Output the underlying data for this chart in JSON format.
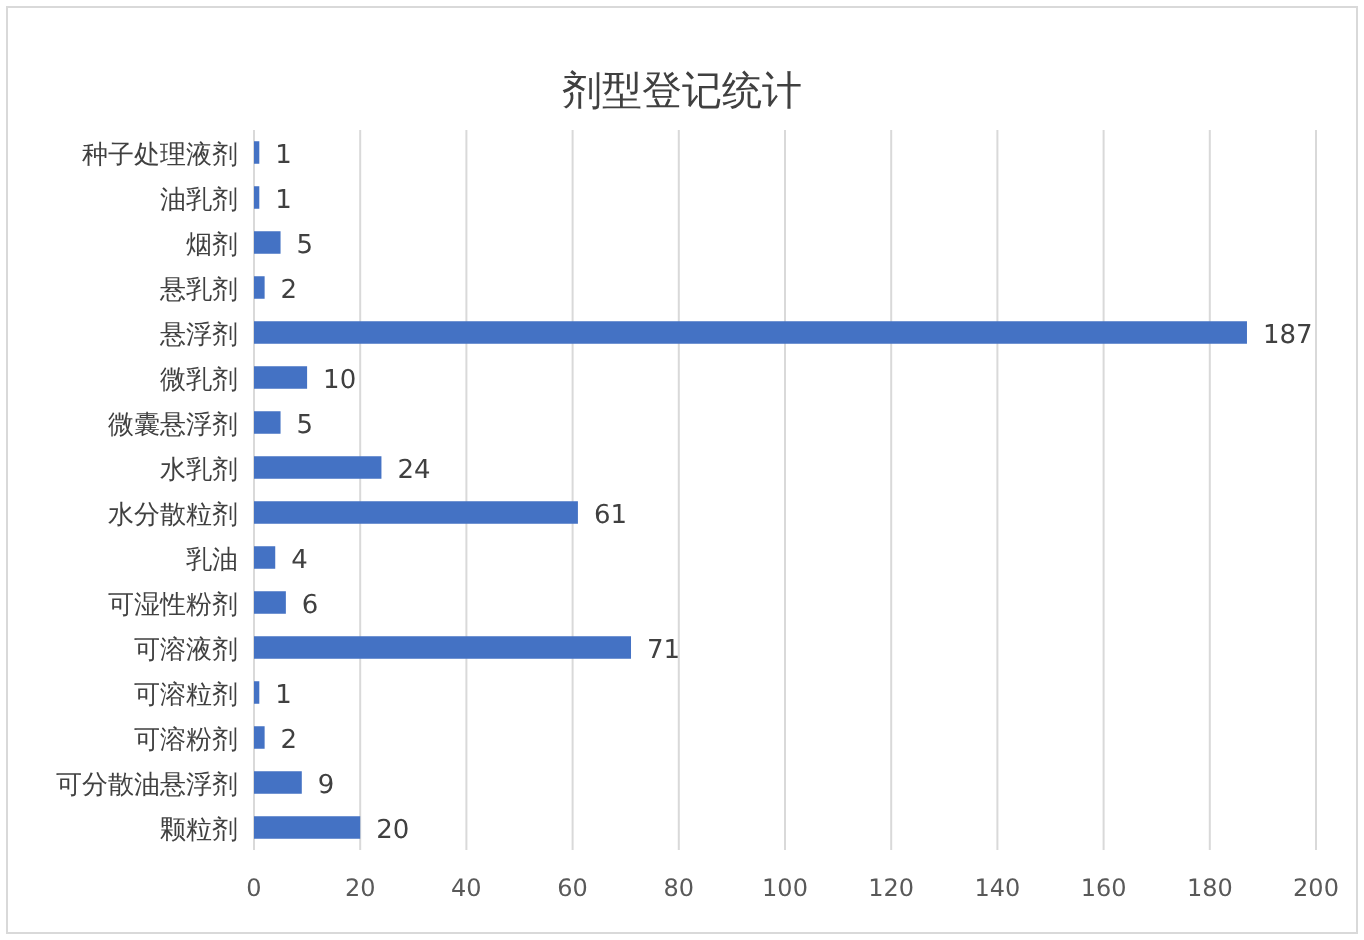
{
  "chart_data": {
    "type": "bar",
    "orientation": "horizontal",
    "title": "剂型登记统计",
    "categories": [
      "种子处理液剂",
      "油乳剂",
      "烟剂",
      "悬乳剂",
      "悬浮剂",
      "微乳剂",
      "微囊悬浮剂",
      "水乳剂",
      "水分散粒剂",
      "乳油",
      "可湿性粉剂",
      "可溶液剂",
      "可溶粒剂",
      "可溶粉剂",
      "可分散油悬浮剂",
      "颗粒剂"
    ],
    "values": [
      1,
      1,
      5,
      2,
      187,
      10,
      5,
      24,
      61,
      4,
      6,
      71,
      1,
      2,
      9,
      20
    ],
    "color": "#4472c4",
    "xlim": [
      0,
      200
    ],
    "xticks": [
      0,
      20,
      40,
      60,
      80,
      100,
      120,
      140,
      160,
      180,
      200
    ],
    "grid": "x",
    "data_labels": true
  }
}
